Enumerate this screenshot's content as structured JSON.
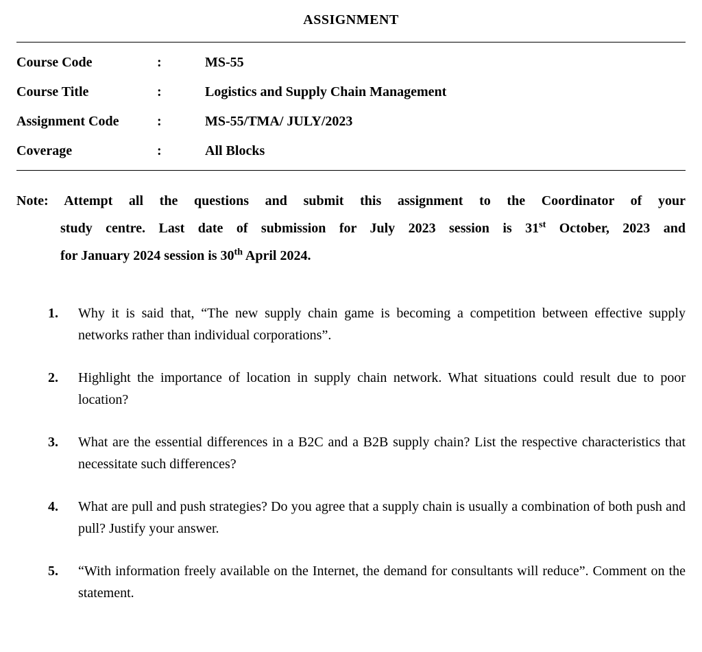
{
  "title": "ASSIGNMENT",
  "info": {
    "rows": [
      {
        "label": "Course Code",
        "value": "MS-55"
      },
      {
        "label": "Course Title",
        "value": "Logistics and Supply Chain Management"
      },
      {
        "label": "Assignment Code",
        "value": "MS-55/TMA/ JULY/2023"
      },
      {
        "label": "Coverage",
        "value": "All Blocks"
      }
    ],
    "colon": ":"
  },
  "note": {
    "prefix": "Note:",
    "line1": "Attempt all the questions and submit this assignment to the Coordinator of your",
    "line2a": "study centre. Last date of submission for July 2023 session is 31",
    "sup1": "st",
    "line2b": " October, 2023 and",
    "line3a": "for January 2024 session is 30",
    "sup2": "th",
    "line3b": " April 2024."
  },
  "questions": [
    {
      "num": "1.",
      "text": "Why it is said that, “The new supply chain game is becoming a competition between effective supply networks rather than individual corporations”."
    },
    {
      "num": "2.",
      "text": "Highlight the importance of location in supply chain network. What situations could result due to poor location?"
    },
    {
      "num": "3.",
      "text": "What are the essential differences in a B2C and a B2B supply chain? List the respective characteristics that necessitate such differences?"
    },
    {
      "num": "4.",
      "text": "What are pull and push strategies? Do you agree that a supply chain is usually a combination of both push and pull? Justify your answer."
    },
    {
      "num": "5.",
      "text": "“With information freely available on the Internet, the demand for consultants will reduce”. Comment on the statement."
    }
  ]
}
